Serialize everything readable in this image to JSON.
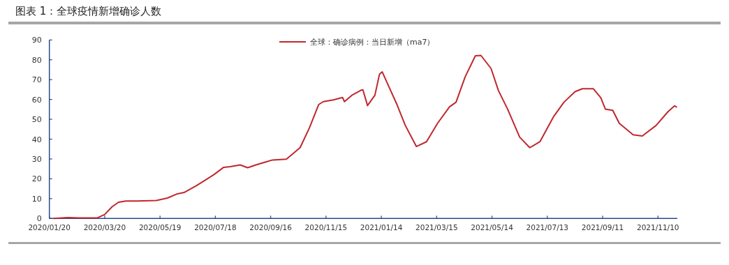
{
  "chart_data": {
    "type": "line",
    "title": "图表 1：全球疫情新增确诊人数",
    "x": [
      "2020-01-25",
      "2020-02-09",
      "2020-02-21",
      "2020-03-12",
      "2020-03-20",
      "2020-03-28",
      "2020-04-04",
      "2020-04-12",
      "2020-04-24",
      "2020-05-15",
      "2020-05-27",
      "2020-06-06",
      "2020-06-14",
      "2020-06-27",
      "2020-07-07",
      "2020-07-17",
      "2020-07-27",
      "2020-08-03",
      "2020-08-14",
      "2020-08-22",
      "2020-08-31",
      "2020-09-10",
      "2020-09-18",
      "2020-10-03",
      "2020-10-09",
      "2020-10-18",
      "2020-10-28",
      "2020-11-07",
      "2020-11-12",
      "2020-11-23",
      "2020-12-03",
      "2020-12-05",
      "2020-12-13",
      "2020-12-23",
      "2020-12-25",
      "2020-12-29",
      "2020-12-30",
      "2021-01-07",
      "2021-01-12",
      "2021-01-15",
      "2021-01-23",
      "2021-01-31",
      "2021-02-09",
      "2021-02-21",
      "2021-03-04",
      "2021-03-16",
      "2021-03-29",
      "2021-04-05",
      "2021-04-15",
      "2021-04-26",
      "2021-05-02",
      "2021-05-13",
      "2021-05-21",
      "2021-05-31",
      "2021-06-13",
      "2021-06-24",
      "2021-07-05",
      "2021-07-20",
      "2021-07-31",
      "2021-08-12",
      "2021-08-20",
      "2021-09-01",
      "2021-09-09",
      "2021-09-14",
      "2021-09-22",
      "2021-09-29",
      "2021-10-14",
      "2021-10-24",
      "2021-11-08",
      "2021-11-21",
      "2021-11-28",
      "2021-11-30"
    ],
    "series": [
      {
        "name": "全球：确诊病例：当日新增（ma7）",
        "color": "#c0272d",
        "values": [
          0,
          0.5,
          0.3,
          0.3,
          2,
          5.9,
          8.2,
          8.8,
          8.8,
          9.1,
          10.3,
          12.3,
          13.1,
          16.4,
          19.3,
          22.3,
          25.8,
          26.1,
          27,
          25.6,
          27,
          28.4,
          29.5,
          29.9,
          32.2,
          35.8,
          45.7,
          57.4,
          58.9,
          59.8,
          61,
          58.9,
          62.1,
          64.7,
          64.9,
          58.6,
          56.9,
          62.1,
          72.7,
          73.9,
          65.6,
          57.4,
          46.9,
          36.3,
          38.7,
          48,
          56.3,
          58.6,
          71.5,
          82,
          82.2,
          75.6,
          64.5,
          55.1,
          41,
          35.7,
          38.7,
          51.5,
          58.6,
          63.9,
          65.4,
          65.4,
          60.9,
          55.1,
          54.5,
          48,
          42.2,
          41.6,
          46.9,
          53.9,
          56.8,
          56.2
        ]
      }
    ],
    "xlim": [
      "2020-01-20",
      "2021-12-01"
    ],
    "xticks": [
      {
        "value": "2020-01-20",
        "label": "2020/01/20"
      },
      {
        "value": "2020-03-20",
        "label": "2020/03/20"
      },
      {
        "value": "2020-05-19",
        "label": "2020/05/19"
      },
      {
        "value": "2020-07-18",
        "label": "2020/07/18"
      },
      {
        "value": "2020-09-16",
        "label": "2020/09/16"
      },
      {
        "value": "2020-11-15",
        "label": "2020/11/15"
      },
      {
        "value": "2021-01-14",
        "label": "2021/01/14"
      },
      {
        "value": "2021-03-15",
        "label": "2021/03/15"
      },
      {
        "value": "2021-05-14",
        "label": "2021/05/14"
      },
      {
        "value": "2021-07-13",
        "label": "2021/07/13"
      },
      {
        "value": "2021-09-11",
        "label": "2021/09/11"
      },
      {
        "value": "2021-11-10",
        "label": "2021/11/10"
      }
    ],
    "ylim": [
      0,
      90
    ],
    "yticks": [
      0,
      10,
      20,
      30,
      40,
      50,
      60,
      70,
      80,
      90
    ],
    "grid": false,
    "legend": "top right",
    "marker": "none",
    "line_style": "solid"
  }
}
